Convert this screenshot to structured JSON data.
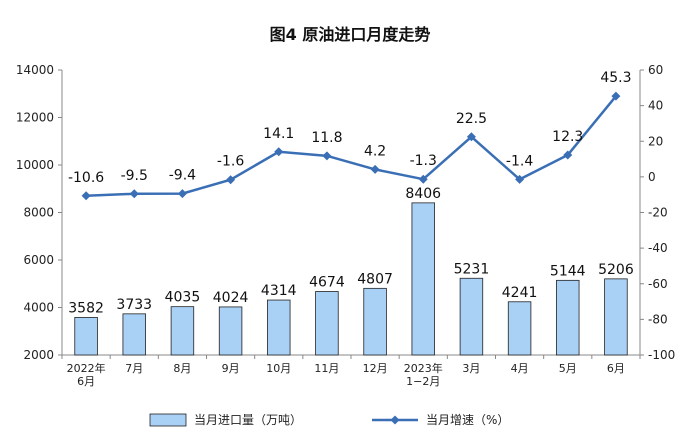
{
  "chart_data": {
    "type": "bar+line",
    "title": "图4  原油进口月度走势",
    "categories": [
      [
        "2022年",
        "6月"
      ],
      [
        "7月"
      ],
      [
        "8月"
      ],
      [
        "9月"
      ],
      [
        "10月"
      ],
      [
        "11月"
      ],
      [
        "12月"
      ],
      [
        "2023年",
        "1−2月"
      ],
      [
        "3月"
      ],
      [
        "4月"
      ],
      [
        "5月"
      ],
      [
        "6月"
      ]
    ],
    "series": [
      {
        "name": "当月进口量（万吨）",
        "type": "bar",
        "axis": "left",
        "color": "#a9d0f5",
        "values": [
          3582,
          3733,
          4035,
          4024,
          4314,
          4674,
          4807,
          8406,
          5231,
          4241,
          5144,
          5206
        ]
      },
      {
        "name": "当月增速（%）",
        "type": "line",
        "axis": "right",
        "color": "#3a6fb5",
        "values": [
          -10.6,
          -9.5,
          -9.4,
          -1.6,
          14.1,
          11.8,
          4.2,
          -1.3,
          22.5,
          -1.4,
          12.3,
          45.3
        ]
      }
    ],
    "y_left": {
      "min": 2000,
      "max": 14000,
      "step": 2000
    },
    "y_right": {
      "min": -100,
      "max": 60,
      "step": 20
    },
    "legend_position": "bottom",
    "grid": false
  }
}
